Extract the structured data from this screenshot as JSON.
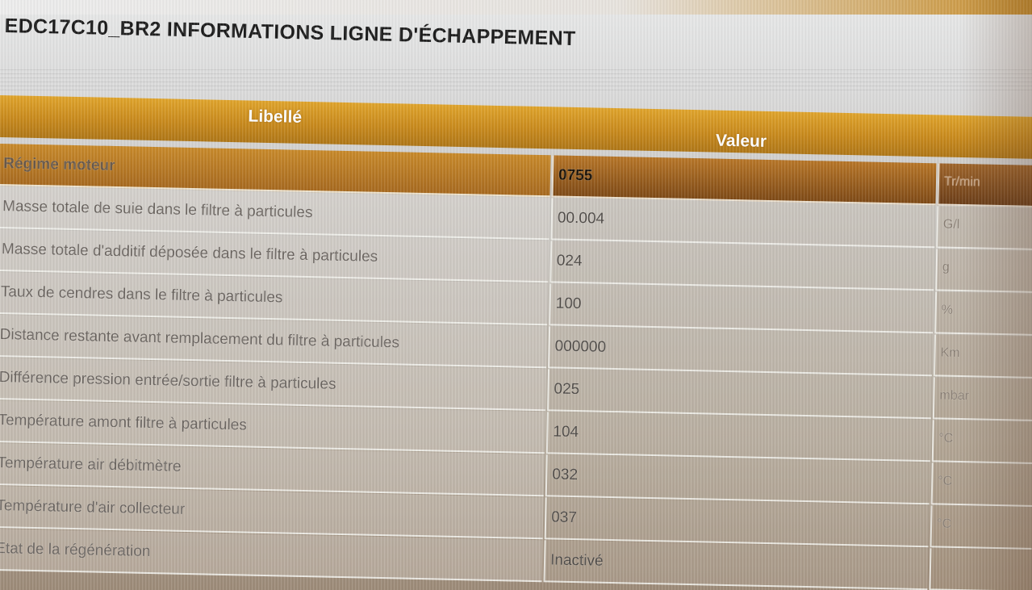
{
  "window": {
    "title": "EDC17C10_BR2  INFORMATIONS LIGNE D'ÉCHAPPEMENT"
  },
  "table": {
    "headers": {
      "libelle": "Libellé",
      "valeur": "Valeur"
    },
    "rows": [
      {
        "label": "Régime moteur",
        "value": "0755",
        "unit": "Tr/min",
        "selected": true
      },
      {
        "label": "Masse totale de suie dans le filtre à particules",
        "value": "00.004",
        "unit": "G/l"
      },
      {
        "label": "Masse totale d'additif déposée dans le filtre à particules",
        "value": "024",
        "unit": "g"
      },
      {
        "label": "Taux de cendres dans le filtre à particules",
        "value": "100",
        "unit": "%"
      },
      {
        "label": "Distance restante avant remplacement du filtre à particules",
        "value": "000000",
        "unit": "Km"
      },
      {
        "label": "Différence pression entrée/sortie filtre à particules",
        "value": "025",
        "unit": "mbar"
      },
      {
        "label": "Température amont filtre à particules",
        "value": "104",
        "unit": "°C"
      },
      {
        "label": "Température air débitmètre",
        "value": "032",
        "unit": "°C"
      },
      {
        "label": "Température d'air collecteur",
        "value": "037",
        "unit": "°C"
      },
      {
        "label": "Etat de la régénération",
        "value": "Inactivé",
        "unit": ""
      }
    ]
  },
  "colors": {
    "header_orange": "#c98a1c",
    "selected_row": "#a86a1f"
  }
}
